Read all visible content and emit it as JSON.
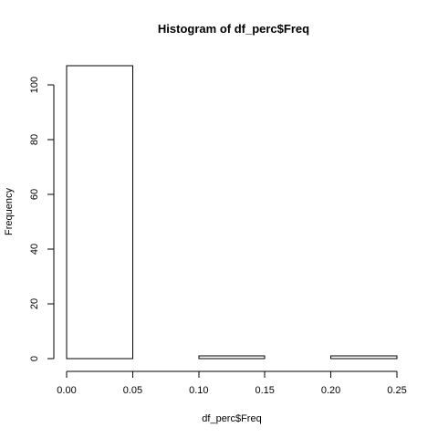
{
  "chart_data": {
    "type": "bar",
    "title": "Histogram of df_perc$Freq",
    "xlabel": "df_perc$Freq",
    "ylabel": "Frequency",
    "bins": [
      {
        "from": 0.0,
        "to": 0.05,
        "count": 107
      },
      {
        "from": 0.05,
        "to": 0.1,
        "count": 0
      },
      {
        "from": 0.1,
        "to": 0.15,
        "count": 1
      },
      {
        "from": 0.15,
        "to": 0.2,
        "count": 0
      },
      {
        "from": 0.2,
        "to": 0.25,
        "count": 1
      }
    ],
    "xlim": [
      0.0,
      0.25
    ],
    "ylim": [
      0,
      107
    ],
    "xticks": [
      0.0,
      0.05,
      0.1,
      0.15,
      0.2,
      0.25
    ],
    "xtick_labels": [
      "0.00",
      "0.05",
      "0.10",
      "0.15",
      "0.20",
      "0.25"
    ],
    "yticks": [
      0,
      20,
      40,
      60,
      80,
      100
    ],
    "ytick_labels": [
      "0",
      "20",
      "40",
      "60",
      "80",
      "100"
    ],
    "grid": false,
    "bar_fill": "#ffffff",
    "bar_stroke": "#000000"
  }
}
